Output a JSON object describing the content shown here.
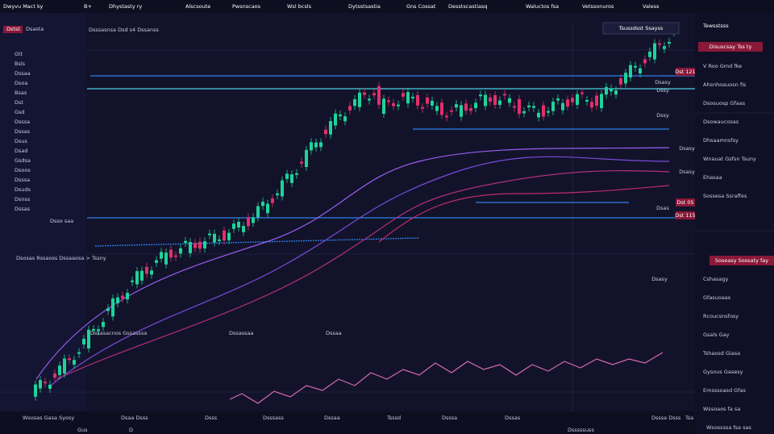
{
  "header": {
    "menu": [
      "Dwyvu Mact ky",
      "B+",
      "Dhystasty ry",
      "Alscsoute",
      "Pwsnscaos",
      "Wsl bcsls",
      "Dytsstsastia",
      "Gns Cossat",
      "Desstscastiasq",
      "Waluctos fsa",
      "Vetssonuros",
      "Valess"
    ]
  },
  "left_panel": {
    "title": "Dstst",
    "subtitle": "Dsasta",
    "items": [
      "Gtt",
      "Bsls",
      "Dssaa",
      "Dsoa",
      "Bsas",
      "Dst",
      "Gsd",
      "Dsssa",
      "Dssas",
      "Dsus",
      "Dsad",
      "Gsdsa",
      "Dsoos",
      "Dsssa",
      "Dsuds",
      "Dsnss",
      "Dssas"
    ],
    "footer": "Dsso saa"
  },
  "chart": {
    "legend": "Dsssasnsa  Dsd s4 Dssanss",
    "tooltip": "Tsussdsst Ssayss",
    "price_labels": [
      "Dst 121",
      "Dst 05",
      "Dst 115"
    ],
    "level_labels": [
      "Dsasy",
      "Dssy",
      "Dssy",
      "Dsasy",
      "Dsasy",
      "Dsas",
      "Dsasy"
    ],
    "indicator_title": "Dsosas Rssaoss Dssaaosa > Tssny",
    "indicator_tags": [
      "Dssasacnos Gssasssa",
      "Dssassaa",
      "Dssaa"
    ]
  },
  "right_panel": {
    "title": "Tewsstsss",
    "highlight": "Disuscsay Tss ty",
    "items": [
      "V Roo Gmd fke",
      "Ahsnhoauosn fis",
      "Dsosuosp Gfaas",
      "Dsowaucosas",
      "Dhsaamnsfsy",
      "Wnauat Gsfsn Tsuny",
      "Ehasaa",
      "Sossesa Ssraffes"
    ],
    "highlight2": "Soseasy Sossaty fay",
    "items2": [
      "Cshasagy",
      "Gfasuoaas",
      "Rcoucsnsfosy",
      "Gsals Gay",
      "Tshaosd Giasa",
      "Gysous Gasesy",
      "Emsssoasd Gfas",
      "Wssoaos fa sa"
    ],
    "footer": "Wsossssa fsa sas"
  },
  "footer": {
    "labels": [
      "Wsosas Gasa Syosy",
      "Gus",
      "D",
      "Dsaa Dsss",
      "Dsss",
      "Dsssass",
      "Dssaa",
      "Tsssd",
      "Dsssa",
      "Dssas",
      "Dsssssuss",
      "Dsssa Dsss",
      "Tsa"
    ]
  }
}
